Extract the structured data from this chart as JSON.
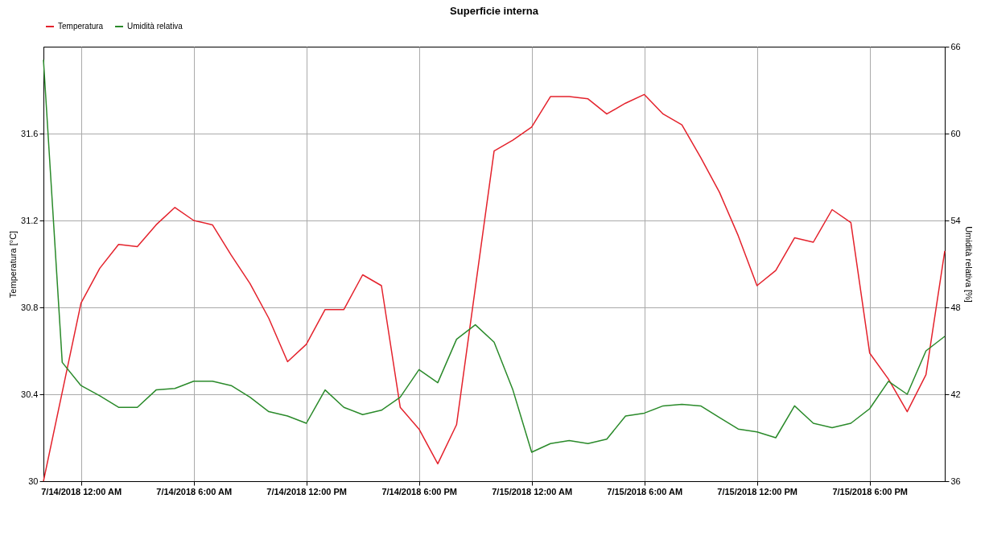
{
  "chart_data": {
    "type": "line",
    "title": "Superficie interna",
    "ylabel": "Temperatura [°C]",
    "y2label": "Umidità relativa [%]",
    "x": [
      "2018-07-13T22:00",
      "2018-07-13T23:00",
      "2018-07-14T00:00",
      "2018-07-14T01:00",
      "2018-07-14T02:00",
      "2018-07-14T03:00",
      "2018-07-14T04:00",
      "2018-07-14T05:00",
      "2018-07-14T06:00",
      "2018-07-14T07:00",
      "2018-07-14T08:00",
      "2018-07-14T09:00",
      "2018-07-14T10:00",
      "2018-07-14T11:00",
      "2018-07-14T12:00",
      "2018-07-14T13:00",
      "2018-07-14T14:00",
      "2018-07-14T15:00",
      "2018-07-14T16:00",
      "2018-07-14T17:00",
      "2018-07-14T18:00",
      "2018-07-14T19:00",
      "2018-07-14T20:00",
      "2018-07-14T21:00",
      "2018-07-14T22:00",
      "2018-07-14T23:00",
      "2018-07-15T00:00",
      "2018-07-15T01:00",
      "2018-07-15T02:00",
      "2018-07-15T03:00",
      "2018-07-15T04:00",
      "2018-07-15T05:00",
      "2018-07-15T06:00",
      "2018-07-15T07:00",
      "2018-07-15T08:00",
      "2018-07-15T09:00",
      "2018-07-15T10:00",
      "2018-07-15T11:00",
      "2018-07-15T12:00",
      "2018-07-15T13:00",
      "2018-07-15T14:00",
      "2018-07-15T15:00",
      "2018-07-15T16:00",
      "2018-07-15T17:00",
      "2018-07-15T18:00",
      "2018-07-15T19:00",
      "2018-07-15T20:00",
      "2018-07-15T21:00",
      "2018-07-15T22:00"
    ],
    "series": [
      {
        "name": "Temperatura",
        "color": "#e4222c",
        "values": [
          30.0,
          30.41,
          30.82,
          30.98,
          31.09,
          31.08,
          31.18,
          31.26,
          31.2,
          31.18,
          31.04,
          30.91,
          30.75,
          30.55,
          30.63,
          30.79,
          30.79,
          30.95,
          30.9,
          30.34,
          30.24,
          30.08,
          30.26,
          30.89,
          31.52,
          31.57,
          31.63,
          31.77,
          31.77,
          31.76,
          31.69,
          31.74,
          31.78,
          31.69,
          31.64,
          31.49,
          31.33,
          31.13,
          30.9,
          30.97,
          31.12,
          31.1,
          31.25,
          31.19,
          30.59,
          30.47,
          30.32,
          30.49,
          31.06
        ]
      },
      {
        "name": "Umidità relativa",
        "color": "#2a8a2a",
        "axis": "y2",
        "values": [
          65.1,
          44.2,
          42.6,
          41.9,
          41.1,
          41.1,
          42.3,
          42.4,
          42.9,
          42.9,
          42.6,
          41.8,
          40.8,
          40.5,
          40.0,
          42.3,
          41.1,
          40.6,
          40.9,
          41.8,
          43.7,
          42.8,
          45.8,
          46.8,
          45.6,
          42.3,
          38.0,
          38.6,
          38.8,
          38.6,
          38.9,
          40.5,
          40.7,
          41.2,
          41.3,
          41.2,
          40.4,
          39.6,
          39.4,
          39.0,
          41.2,
          40.0,
          39.7,
          40.0,
          41.0,
          42.9,
          42.0,
          45.0,
          46.0
        ]
      }
    ],
    "xlim": [
      "2018-07-13T22:00",
      "2018-07-15T22:00"
    ],
    "xticks": [
      {
        "value": "2018-07-14T00:00",
        "label": "7/14/2018 12:00 AM"
      },
      {
        "value": "2018-07-14T06:00",
        "label": "7/14/2018 6:00 AM"
      },
      {
        "value": "2018-07-14T12:00",
        "label": "7/14/2018 12:00 PM"
      },
      {
        "value": "2018-07-14T18:00",
        "label": "7/14/2018 6:00 PM"
      },
      {
        "value": "2018-07-15T00:00",
        "label": "7/15/2018 12:00 AM"
      },
      {
        "value": "2018-07-15T06:00",
        "label": "7/15/2018 6:00 AM"
      },
      {
        "value": "2018-07-15T12:00",
        "label": "7/15/2018 12:00 PM"
      },
      {
        "value": "2018-07-15T18:00",
        "label": "7/15/2018 6:00 PM"
      }
    ],
    "ylim": [
      30,
      32
    ],
    "yticks": [
      30,
      30.4,
      30.8,
      31.2,
      31.6
    ],
    "y2lim": [
      36,
      66
    ],
    "y2ticks": [
      36,
      42,
      48,
      54,
      60,
      66
    ],
    "grid": true,
    "legend": "top",
    "marker": "none",
    "line_style": "solid"
  }
}
